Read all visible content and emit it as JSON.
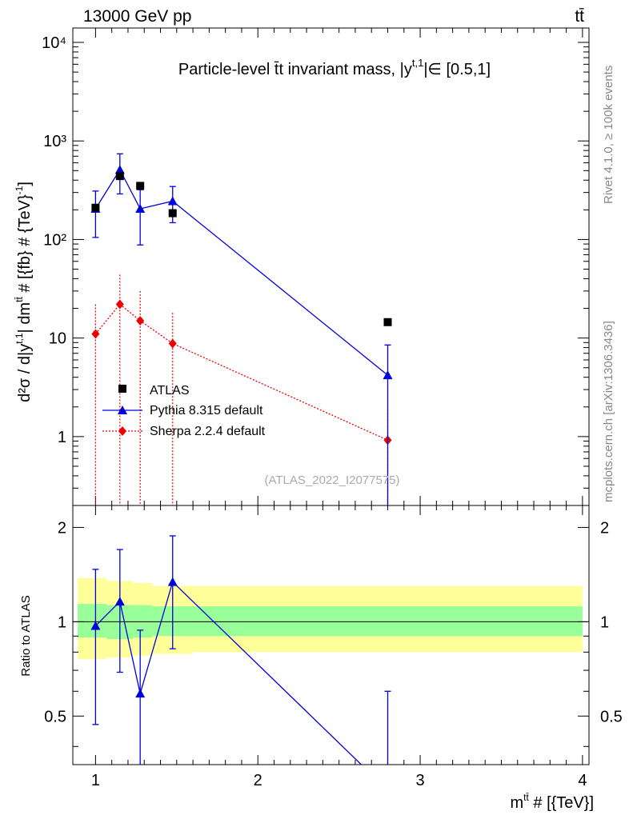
{
  "header": {
    "left": "13000 GeV pp",
    "right": "tt̄"
  },
  "side_labels": {
    "rivet": "Rivet 4.1.0, ≥ 100k events",
    "mcplots": "mcplots.cern.ch [arXiv:1306.3436]"
  },
  "watermark": "(ATLAS_2022_I2077575)",
  "colors": {
    "atlas": "#000000",
    "pythia": "#0000dd",
    "sherpa": "#ee0000",
    "band_outer": "#ffff99",
    "band_inner": "#99ff99"
  },
  "chart_data": [
    {
      "type": "scatter",
      "title": "Particle-level t̄t invariant mass, |y^{t,1}| ∈ [0.5,1]",
      "title_text": "Particle-level t̄t invariant mass, |y",
      "title_sup": "t,1",
      "title_tail": "|∈ [0.5,1]",
      "xlabel": "m^{tt̄} # [{TeV}]",
      "ylabel": "d²σ / d|y^{t,1}| dm^{tt̄} # [{fb} # {TeV}⁻¹]",
      "ylabel_text": "d²σ / d|y",
      "ylabel_sup": "t,1",
      "ylabel_mid": "| dm",
      "ylabel_sup2": "tt̄",
      "ylabel_tail": " # [{fb} # {TeV}",
      "ylabel_sup3": "-1",
      "ylabel_end": "]",
      "xlim": [
        0.86,
        4.04
      ],
      "ylim": [
        0.2,
        14000
      ],
      "yscale": "log",
      "y_ticks": [
        {
          "v": 1,
          "label": "1"
        },
        {
          "v": 10,
          "label": "10"
        },
        {
          "v": 100,
          "label": "10²"
        },
        {
          "v": 1000,
          "label": "10³"
        },
        {
          "v": 10000,
          "label": "10⁴"
        }
      ],
      "legend_position": "middle-left",
      "series": [
        {
          "name": "ATLAS",
          "marker": "square",
          "x": [
            1.0,
            1.15,
            1.275,
            1.475,
            2.8
          ],
          "values": [
            210,
            440,
            350,
            185,
            14.5
          ]
        },
        {
          "name": "Pythia 8.315 default",
          "marker": "triangle",
          "line": "solid",
          "x": [
            1.0,
            1.15,
            1.275,
            1.475,
            2.8
          ],
          "values": [
            205,
            510,
            205,
            245,
            4.2
          ],
          "err_low": [
            105,
            290,
            88,
            148,
            0.15
          ],
          "err_high": [
            310,
            740,
            320,
            345,
            8.5
          ]
        },
        {
          "name": "Sherpa 2.2.4 default",
          "marker": "diamond",
          "line": "dotted",
          "x": [
            1.0,
            1.15,
            1.275,
            1.475,
            2.8
          ],
          "values": [
            11,
            22,
            15,
            8.8,
            0.92
          ],
          "err_low": [
            0.2,
            0.2,
            0.2,
            0.2,
            0.2
          ],
          "err_high": [
            22,
            44,
            30,
            18,
            1.9
          ]
        }
      ]
    },
    {
      "type": "line",
      "ylabel": "Ratio to ATLAS",
      "xlim": [
        0.86,
        4.04
      ],
      "ylim": [
        0.35,
        2.35
      ],
      "yscale": "log",
      "y_ticks": [
        {
          "v": 0.5,
          "label": "0.5"
        },
        {
          "v": 1,
          "label": "1"
        },
        {
          "v": 2,
          "label": "2"
        }
      ],
      "x_ticks": [
        {
          "v": 1,
          "label": "1"
        },
        {
          "v": 2,
          "label": "2"
        },
        {
          "v": 3,
          "label": "3"
        },
        {
          "v": 4,
          "label": "4"
        }
      ],
      "band_bins": [
        0.89,
        1.07,
        1.23,
        1.35,
        1.6,
        4.0
      ],
      "band_outer": [
        [
          0.76,
          1.38
        ],
        [
          0.77,
          1.35
        ],
        [
          0.78,
          1.33
        ],
        [
          0.79,
          1.3
        ],
        [
          0.8,
          1.3
        ]
      ],
      "band_inner": [
        [
          0.89,
          1.14
        ],
        [
          0.88,
          1.13
        ],
        [
          0.89,
          1.13
        ],
        [
          0.9,
          1.12
        ],
        [
          0.9,
          1.12
        ]
      ],
      "series": [
        {
          "name": "Pythia 8.315 default",
          "marker": "triangle",
          "x": [
            1.0,
            1.15,
            1.275,
            1.475,
            2.8
          ],
          "values": [
            0.97,
            1.16,
            0.59,
            1.34,
            0.29
          ],
          "err_low": [
            0.47,
            0.69,
            0.25,
            0.82,
            0.01
          ],
          "err_high": [
            1.47,
            1.7,
            0.94,
            1.88,
            0.6
          ]
        }
      ]
    }
  ]
}
